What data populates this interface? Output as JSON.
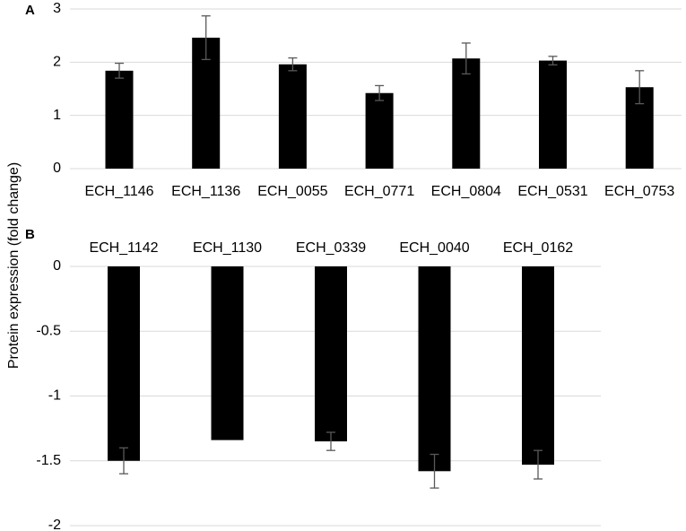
{
  "figure": {
    "ylabel": "Protein expression (fold change)"
  },
  "chart_data": [
    {
      "type": "bar",
      "panel": "A",
      "title": "",
      "xlabel": "",
      "ylabel": "Protein expression (fold change)",
      "categories": [
        "ECH_1146",
        "ECH_1136",
        "ECH_0055",
        "ECH_0771",
        "ECH_0804",
        "ECH_0531",
        "ECH_0753"
      ],
      "values": [
        1.84,
        2.46,
        1.96,
        1.42,
        2.07,
        2.03,
        1.53
      ],
      "errors": [
        0.14,
        0.41,
        0.12,
        0.14,
        0.29,
        0.08,
        0.31
      ],
      "ylim": [
        0,
        3
      ],
      "yticks": [
        "0",
        "1",
        "2",
        "3"
      ],
      "grid": true,
      "bar_color": "#000000",
      "grid_color": "#d9d9d9",
      "error_bar_color": "#595959"
    },
    {
      "type": "bar",
      "panel": "B",
      "title": "",
      "xlabel": "",
      "ylabel": "Protein expression (fold change)",
      "categories": [
        "ECH_1142",
        "ECH_1130",
        "ECH_0339",
        "ECH_0040",
        "ECH_0162"
      ],
      "values": [
        -1.5,
        -1.34,
        -1.35,
        -1.58,
        -1.53
      ],
      "errors": [
        0.1,
        0.0,
        0.07,
        0.13,
        0.11
      ],
      "ylim": [
        -2,
        0
      ],
      "yticks": [
        "0",
        "-0.5",
        "-1",
        "-1.5",
        "-2"
      ],
      "grid": true,
      "bar_color": "#000000",
      "grid_color": "#d9d9d9",
      "error_bar_color": "#595959"
    }
  ]
}
